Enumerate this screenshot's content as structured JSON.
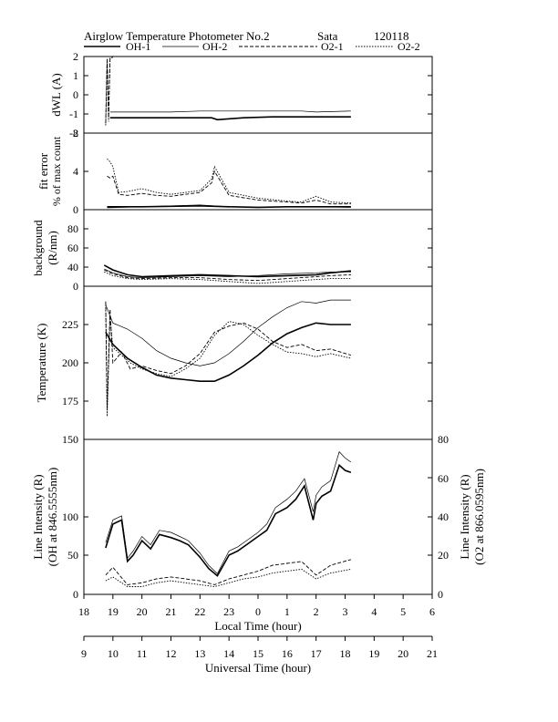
{
  "title": "Airglow Temperature Photometer No.2",
  "site": "Sata",
  "date_code": "120118",
  "legend": [
    {
      "name": "OH-1",
      "style": "solid-thick"
    },
    {
      "name": "OH-2",
      "style": "solid-thin"
    },
    {
      "name": "O2-1",
      "style": "dashed"
    },
    {
      "name": "O2-2",
      "style": "dotted"
    }
  ],
  "x_axes": {
    "local": {
      "label": "Local Time (hour)",
      "ticks": [
        "18",
        "19",
        "20",
        "21",
        "22",
        "23",
        "0",
        "1",
        "2",
        "3",
        "4",
        "5",
        "6"
      ]
    },
    "universal": {
      "label": "Universal Time (hour)",
      "ticks": [
        "9",
        "10",
        "11",
        "12",
        "13",
        "14",
        "15",
        "16",
        "17",
        "18",
        "19",
        "20",
        "21"
      ]
    }
  },
  "panels": {
    "dwl": {
      "ylabel": "dWL (A)",
      "ticks": [
        "2",
        "1",
        "0",
        "-1",
        "-2"
      ]
    },
    "fit_error": {
      "ylabel": "fit error",
      "ylabel2": "% of max count",
      "ticks": [
        "8",
        "4",
        "0"
      ]
    },
    "background": {
      "ylabel": "background",
      "ylabel2": "(R/nm)",
      "ticks": [
        "80",
        "60",
        "40",
        "20",
        "0"
      ]
    },
    "temperature": {
      "ylabel": "Temperature (K)",
      "ticks": [
        "225",
        "200",
        "175"
      ]
    },
    "intensity": {
      "ylabel": "Line Intensity (R)",
      "ylabel2": "(OH at 846.5555nm)",
      "ticks": [
        "150",
        "100",
        "50",
        "0"
      ],
      "rlabel": "Line Intensity (R)",
      "rlabel2": "(O2 at 866.0595nm)",
      "rticks": [
        "80",
        "60",
        "40",
        "20",
        "0"
      ]
    }
  },
  "chart_data": [
    {
      "type": "line",
      "panel": "dWL",
      "ylabel": "dWL (A)",
      "ylim": [
        -2,
        2
      ],
      "series": [
        {
          "name": "OH-1",
          "x": [
            9.9,
            10.5,
            12,
            13.4,
            13.6,
            14.5,
            15.5,
            18.2
          ],
          "y": [
            -1.2,
            -1.2,
            -1.2,
            -1.2,
            -1.3,
            -1.2,
            -1.15,
            -1.15
          ]
        },
        {
          "name": "OH-2",
          "x": [
            9.9,
            10.5,
            12,
            13,
            14.5,
            16.5,
            17,
            18.2
          ],
          "y": [
            -0.9,
            -0.9,
            -0.9,
            -0.85,
            -0.85,
            -0.85,
            -0.9,
            -0.85
          ]
        },
        {
          "name": "O2-1",
          "x": [
            9.75,
            9.8,
            9.85,
            9.9,
            9.95,
            10.0
          ],
          "y": [
            -1.5,
            1.9,
            -1.2,
            1.9,
            1.9,
            2.0
          ]
        },
        {
          "name": "O2-2",
          "x": [
            9.75,
            9.8,
            9.85,
            9.9,
            9.95,
            10.0
          ],
          "y": [
            -1.6,
            1.8,
            -1.4,
            1.9,
            1.9,
            2.0
          ]
        }
      ]
    },
    {
      "type": "line",
      "panel": "fit error",
      "ylabel": "fit error % of max count",
      "ylim": [
        0,
        8
      ],
      "series": [
        {
          "name": "OH-1",
          "x": [
            9.8,
            11,
            12,
            13,
            14,
            15,
            16,
            17,
            18.2
          ],
          "y": [
            0.3,
            0.3,
            0.35,
            0.4,
            0.3,
            0.25,
            0.3,
            0.3,
            0.3
          ]
        },
        {
          "name": "OH-2",
          "x": [
            9.8,
            11,
            12,
            13,
            14,
            15,
            16,
            17,
            18.2
          ],
          "y": [
            0.2,
            0.3,
            0.4,
            0.5,
            0.3,
            0.25,
            0.3,
            0.3,
            0.25
          ]
        },
        {
          "name": "O2-1",
          "x": [
            9.8,
            9.9,
            10.0,
            10.2,
            10.5,
            11,
            11.5,
            12,
            12.5,
            13,
            13.4,
            13.5,
            14,
            15,
            16,
            16.5,
            17,
            17.5,
            18.2
          ],
          "y": [
            3.5,
            3.3,
            3.5,
            1.6,
            1.5,
            1.7,
            1.5,
            1.4,
            1.6,
            1.8,
            2.8,
            4.0,
            1.5,
            1.0,
            0.8,
            0.7,
            1.0,
            0.6,
            0.6
          ]
        },
        {
          "name": "O2-2",
          "x": [
            9.8,
            9.9,
            10.0,
            10.2,
            10.5,
            11,
            11.5,
            12,
            12.5,
            13,
            13.4,
            13.5,
            14,
            15,
            16,
            16.5,
            17,
            17.5,
            18.2
          ],
          "y": [
            5.3,
            5.0,
            4.5,
            1.8,
            1.9,
            2.2,
            1.8,
            1.6,
            1.8,
            2.0,
            3.2,
            4.5,
            1.8,
            1.2,
            0.9,
            0.8,
            1.4,
            0.8,
            0.7
          ]
        }
      ]
    },
    {
      "type": "line",
      "panel": "background",
      "ylabel": "background (R/nm)",
      "ylim": [
        0,
        80
      ],
      "series": [
        {
          "name": "OH-1",
          "x": [
            9.7,
            10,
            10.5,
            11,
            12,
            13,
            14,
            15,
            16,
            17,
            17.5,
            18.2
          ],
          "y": [
            22,
            17,
            12,
            10,
            11,
            12,
            11,
            10,
            11,
            12,
            14,
            16
          ]
        },
        {
          "name": "OH-2",
          "x": [
            9.7,
            10,
            10.5,
            11,
            12,
            13,
            14,
            15,
            16,
            17,
            17.5,
            18.2
          ],
          "y": [
            18,
            14,
            10,
            9,
            10,
            11,
            10,
            11,
            13,
            14,
            15,
            15
          ]
        },
        {
          "name": "O2-1",
          "x": [
            9.7,
            10,
            10.5,
            11,
            12,
            13,
            14,
            15,
            16,
            17,
            17.5,
            18.2
          ],
          "y": [
            17,
            13,
            9,
            8,
            9,
            9,
            7,
            6,
            8,
            10,
            11,
            12
          ]
        },
        {
          "name": "O2-2",
          "x": [
            9.7,
            10,
            10.5,
            11,
            12,
            13,
            14,
            15,
            16,
            17,
            17.5,
            18.2
          ],
          "y": [
            15,
            11,
            8,
            7,
            8,
            7,
            5,
            3,
            5,
            7,
            8,
            8
          ]
        }
      ]
    },
    {
      "type": "line",
      "panel": "temperature",
      "ylabel": "Temperature (K)",
      "ylim": [
        150,
        250
      ],
      "series": [
        {
          "name": "OH-1",
          "x": [
            9.75,
            10,
            10.5,
            11,
            11.5,
            12,
            12.5,
            13,
            13.5,
            14,
            14.5,
            15,
            15.5,
            16,
            16.5,
            17,
            17.5,
            18.2
          ],
          "y": [
            220,
            212,
            203,
            197,
            192,
            190,
            189,
            188,
            188,
            192,
            198,
            205,
            213,
            219,
            223,
            226,
            225,
            225
          ]
        },
        {
          "name": "OH-2",
          "x": [
            9.75,
            10,
            10.5,
            11,
            11.5,
            12,
            12.5,
            13,
            13.5,
            14,
            14.5,
            15,
            15.5,
            16,
            16.5,
            17,
            17.5,
            18.2
          ],
          "y": [
            238,
            226,
            222,
            216,
            208,
            203,
            200,
            198,
            200,
            206,
            214,
            223,
            230,
            236,
            240,
            239,
            241,
            241
          ]
        },
        {
          "name": "O2-1",
          "x": [
            9.75,
            9.8,
            9.9,
            10.0,
            10.3,
            10.6,
            11,
            11.5,
            12,
            12.5,
            13,
            13.5,
            14,
            14.5,
            15,
            15.5,
            16,
            16.5,
            17,
            17.5,
            18.2
          ],
          "y": [
            240,
            170,
            235,
            200,
            207,
            196,
            198,
            195,
            193,
            198,
            206,
            220,
            224,
            226,
            222,
            214,
            210,
            212,
            208,
            209,
            205
          ]
        },
        {
          "name": "O2-2",
          "x": [
            9.75,
            9.8,
            9.9,
            10.0,
            10.3,
            10.6,
            11,
            11.5,
            12,
            12.5,
            13,
            13.5,
            14,
            14.5,
            15,
            15.5,
            16,
            16.5,
            17,
            17.5,
            18.2
          ],
          "y": [
            238,
            165,
            230,
            210,
            205,
            200,
            196,
            193,
            191,
            196,
            203,
            218,
            227,
            225,
            218,
            212,
            207,
            206,
            204,
            206,
            203
          ]
        }
      ]
    },
    {
      "type": "line",
      "panel": "line intensity",
      "ylabel": "Line Intensity (R) (OH at 846.5555nm)",
      "ylim": [
        0,
        150
      ],
      "y2label": "Line Intensity (R) (O2 at 866.0595nm)",
      "y2lim": [
        0,
        80
      ],
      "series": [
        {
          "name": "OH-1",
          "axis": "left",
          "x": [
            9.75,
            10,
            10.3,
            10.5,
            10.7,
            11,
            11.3,
            11.6,
            12,
            12.3,
            12.6,
            13,
            13.3,
            13.6,
            14,
            14.3,
            14.6,
            15,
            15.3,
            15.6,
            16,
            16.3,
            16.6,
            16.9,
            17.0,
            17.2,
            17.5,
            17.8,
            18.0,
            18.2
          ],
          "y": [
            45,
            68,
            72,
            32,
            38,
            52,
            44,
            58,
            55,
            52,
            48,
            36,
            25,
            18,
            38,
            42,
            48,
            56,
            62,
            78,
            84,
            92,
            105,
            72,
            88,
            95,
            100,
            125,
            120,
            118
          ]
        },
        {
          "name": "OH-2",
          "axis": "left",
          "x": [
            9.75,
            10,
            10.3,
            10.5,
            10.7,
            11,
            11.3,
            11.6,
            12,
            12.3,
            12.6,
            13,
            13.3,
            13.6,
            14,
            14.3,
            14.6,
            15,
            15.3,
            15.6,
            16,
            16.3,
            16.6,
            16.9,
            17.0,
            17.2,
            17.5,
            17.8,
            18.0,
            18.2
          ],
          "y": [
            50,
            72,
            76,
            35,
            42,
            56,
            48,
            62,
            60,
            56,
            52,
            40,
            28,
            20,
            42,
            46,
            52,
            60,
            68,
            84,
            92,
            100,
            112,
            80,
            96,
            104,
            110,
            138,
            132,
            128
          ]
        },
        {
          "name": "O2-1",
          "axis": "right",
          "x": [
            9.75,
            10,
            10.5,
            11,
            11.5,
            12,
            12.5,
            13,
            13.5,
            14,
            14.5,
            15,
            15.5,
            16,
            16.5,
            17,
            17.5,
            18.2
          ],
          "y": [
            10,
            14,
            5,
            6,
            8,
            9,
            8,
            7,
            5,
            8,
            10,
            12,
            15,
            16,
            17,
            10,
            15,
            18
          ]
        },
        {
          "name": "O2-2",
          "axis": "right",
          "x": [
            9.75,
            10,
            10.5,
            11,
            11.5,
            12,
            12.5,
            13,
            13.5,
            14,
            14.5,
            15,
            15.5,
            16,
            16.5,
            17,
            17.5,
            18.2
          ],
          "y": [
            7,
            9,
            4,
            4,
            6,
            7,
            6,
            5,
            4,
            6,
            8,
            9,
            11,
            12,
            13,
            8,
            11,
            13
          ]
        }
      ]
    }
  ]
}
